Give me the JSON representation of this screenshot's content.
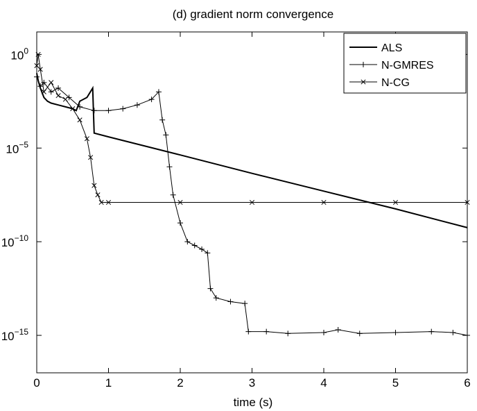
{
  "chart_data": {
    "type": "line",
    "title": "(d) gradient norm convergence",
    "xlabel": "time (s)",
    "ylabel": "",
    "xlim": [
      0,
      6
    ],
    "ylim_log10": [
      -17,
      1.2
    ],
    "y_scale": "log",
    "grid": false,
    "legend_position": "top-right",
    "x_ticks": [
      "0",
      "1",
      "2",
      "3",
      "4",
      "5",
      "6"
    ],
    "y_ticks": [
      {
        "base": "10",
        "exp": "0"
      },
      {
        "base": "10",
        "exp": "−5"
      },
      {
        "base": "10",
        "exp": "−10"
      },
      {
        "base": "10",
        "exp": "−15"
      }
    ],
    "colors": {
      "series": "#000000",
      "axis": "#000000",
      "background": "#ffffff"
    },
    "series": [
      {
        "name": "ALS",
        "marker": "none",
        "points_log10": [
          [
            0.0,
            -1.0
          ],
          [
            0.02,
            -1.4
          ],
          [
            0.05,
            -1.8
          ],
          [
            0.1,
            -2.3
          ],
          [
            0.15,
            -2.5
          ],
          [
            0.2,
            -2.6
          ],
          [
            0.3,
            -2.7
          ],
          [
            0.4,
            -2.8
          ],
          [
            0.5,
            -2.9
          ],
          [
            0.55,
            -3.0
          ],
          [
            0.6,
            -2.5
          ],
          [
            0.7,
            -2.3
          ],
          [
            0.78,
            -1.8
          ],
          [
            0.8,
            -4.2
          ],
          [
            1.0,
            -4.4
          ],
          [
            2.0,
            -5.37
          ],
          [
            3.0,
            -6.35
          ],
          [
            4.0,
            -7.3
          ],
          [
            5.0,
            -8.25
          ],
          [
            6.0,
            -9.25
          ]
        ]
      },
      {
        "name": "N-GMRES",
        "marker": "plus",
        "points_log10": [
          [
            0.0,
            -1.2
          ],
          [
            0.05,
            -1.7
          ],
          [
            0.1,
            -1.5
          ],
          [
            0.2,
            -2.0
          ],
          [
            0.3,
            -1.8
          ],
          [
            0.45,
            -2.3
          ],
          [
            0.6,
            -2.8
          ],
          [
            0.8,
            -3.0
          ],
          [
            1.0,
            -3.0
          ],
          [
            1.2,
            -2.9
          ],
          [
            1.4,
            -2.7
          ],
          [
            1.6,
            -2.4
          ],
          [
            1.7,
            -2.0
          ],
          [
            1.75,
            -3.5
          ],
          [
            1.8,
            -4.3
          ],
          [
            1.85,
            -6.0
          ],
          [
            1.9,
            -7.5
          ],
          [
            2.0,
            -9.0
          ],
          [
            2.1,
            -10.0
          ],
          [
            2.2,
            -10.2
          ],
          [
            2.3,
            -10.4
          ],
          [
            2.38,
            -10.6
          ],
          [
            2.42,
            -12.5
          ],
          [
            2.5,
            -13.0
          ],
          [
            2.7,
            -13.2
          ],
          [
            2.9,
            -13.3
          ],
          [
            2.95,
            -14.8
          ],
          [
            3.2,
            -14.8
          ],
          [
            3.5,
            -14.9
          ],
          [
            4.0,
            -14.85
          ],
          [
            4.2,
            -14.7
          ],
          [
            4.5,
            -14.9
          ],
          [
            5.0,
            -14.85
          ],
          [
            5.5,
            -14.8
          ],
          [
            5.8,
            -14.85
          ],
          [
            6.0,
            -15.0
          ]
        ]
      },
      {
        "name": "N-CG",
        "marker": "x",
        "points_log10": [
          [
            0.0,
            -0.6
          ],
          [
            0.02,
            0.0
          ],
          [
            0.05,
            -0.8
          ],
          [
            0.1,
            -2.0
          ],
          [
            0.2,
            -1.5
          ],
          [
            0.3,
            -2.2
          ],
          [
            0.4,
            -2.4
          ],
          [
            0.5,
            -2.9
          ],
          [
            0.6,
            -3.5
          ],
          [
            0.7,
            -4.5
          ],
          [
            0.75,
            -5.5
          ],
          [
            0.8,
            -7.0
          ],
          [
            0.85,
            -7.5
          ],
          [
            0.9,
            -7.9
          ],
          [
            1.0,
            -7.9
          ],
          [
            2.0,
            -7.9
          ],
          [
            3.0,
            -7.9
          ],
          [
            4.0,
            -7.9
          ],
          [
            5.0,
            -7.9
          ],
          [
            6.0,
            -7.9
          ]
        ]
      }
    ]
  }
}
